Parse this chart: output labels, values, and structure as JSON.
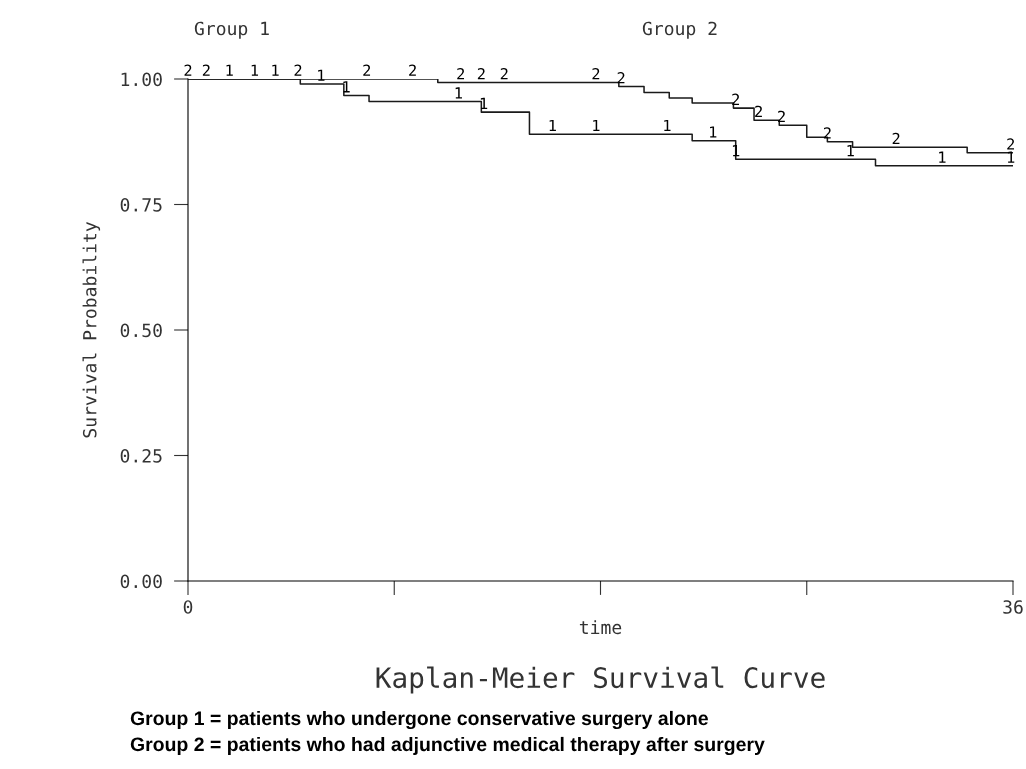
{
  "chart_data": {
    "type": "step",
    "xlabel": "time",
    "ylabel": "Survival Probability",
    "title": "Kaplan-Meier Survival Curve",
    "xlim": [
      0,
      36
    ],
    "xticks": [
      0,
      {
        "value": 9,
        "label": null
      },
      {
        "value": 18,
        "label": null
      },
      {
        "value": 27,
        "label": null
      },
      36
    ],
    "ylim": [
      0,
      1.0
    ],
    "yticks": [
      {
        "value": 0,
        "label": "0.00"
      },
      {
        "value": 0.25,
        "label": "0.25"
      },
      {
        "value": 0.5,
        "label": "0.50"
      },
      {
        "value": 0.75,
        "label": "0.75"
      },
      {
        "value": 1.0,
        "label": "1.00"
      }
    ],
    "grid": false,
    "legend": false,
    "marker": "none",
    "line_style": "solid",
    "series": [
      {
        "color": "#1a1a1a",
        "x": [
          0,
          4.9,
          6.8,
          7.9,
          12.8,
          14.9,
          22.0,
          23.9,
          30.0,
          36
        ],
        "values": [
          1.0,
          0.99,
          0.967,
          0.955,
          0.934,
          0.89,
          0.877,
          0.84,
          0.827,
          0.827
        ]
      },
      {
        "color": "#1a1a1a",
        "x": [
          0,
          10.9,
          18.8,
          19.9,
          21.0,
          22.0,
          23.8,
          24.7,
          25.8,
          27.0,
          27.9,
          29.0,
          34.0,
          36
        ],
        "values": [
          1.0,
          0.993,
          0.985,
          0.973,
          0.962,
          0.952,
          0.942,
          0.918,
          0.908,
          0.884,
          0.875,
          0.864,
          0.853,
          0.853
        ]
      }
    ],
    "annotations": [
      {
        "text": "1",
        "x": 1.8,
        "y": 1.0
      },
      {
        "text": "1",
        "x": 2.9,
        "y": 1.0
      },
      {
        "text": "1",
        "x": 3.8,
        "y": 1.0
      },
      {
        "text": "1",
        "x": 5.8,
        "y": 0.99
      },
      {
        "text": "1",
        "x": 6.9,
        "y": 0.967
      },
      {
        "text": "1",
        "x": 11.8,
        "y": 0.955
      },
      {
        "text": "1",
        "x": 12.9,
        "y": 0.934
      },
      {
        "text": "1",
        "x": 15.9,
        "y": 0.89
      },
      {
        "text": "1",
        "x": 17.8,
        "y": 0.89
      },
      {
        "text": "1",
        "x": 20.9,
        "y": 0.89
      },
      {
        "text": "1",
        "x": 22.9,
        "y": 0.877
      },
      {
        "text": "1",
        "x": 23.9,
        "y": 0.84
      },
      {
        "text": "1",
        "x": 28.9,
        "y": 0.84
      },
      {
        "text": "1",
        "x": 32.9,
        "y": 0.827
      },
      {
        "text": "1",
        "x": 35.9,
        "y": 0.827
      },
      {
        "text": "2",
        "x": 0,
        "y": 1.0
      },
      {
        "text": "2",
        "x": 0.8,
        "y": 1.0
      },
      {
        "text": "2",
        "x": 4.8,
        "y": 1.0
      },
      {
        "text": "2",
        "x": 7.8,
        "y": 1.0
      },
      {
        "text": "2",
        "x": 9.8,
        "y": 1.0
      },
      {
        "text": "2",
        "x": 11.9,
        "y": 0.993
      },
      {
        "text": "2",
        "x": 12.8,
        "y": 0.993
      },
      {
        "text": "2",
        "x": 13.8,
        "y": 0.993
      },
      {
        "text": "2",
        "x": 17.8,
        "y": 0.993
      },
      {
        "text": "2",
        "x": 18.9,
        "y": 0.985
      },
      {
        "text": "2",
        "x": 23.9,
        "y": 0.942
      },
      {
        "text": "2",
        "x": 24.9,
        "y": 0.918
      },
      {
        "text": "2",
        "x": 25.9,
        "y": 0.908
      },
      {
        "text": "2",
        "x": 27.9,
        "y": 0.875
      },
      {
        "text": "2",
        "x": 30.9,
        "y": 0.864
      },
      {
        "text": "2",
        "x": 35.9,
        "y": 0.853
      },
      "Group 1",
      "Group 2",
      "Group 1 = patients who undergone conservative surgery alone",
      "Group 2 = patients who had adjunctive medical therapy after surgery"
    ]
  }
}
